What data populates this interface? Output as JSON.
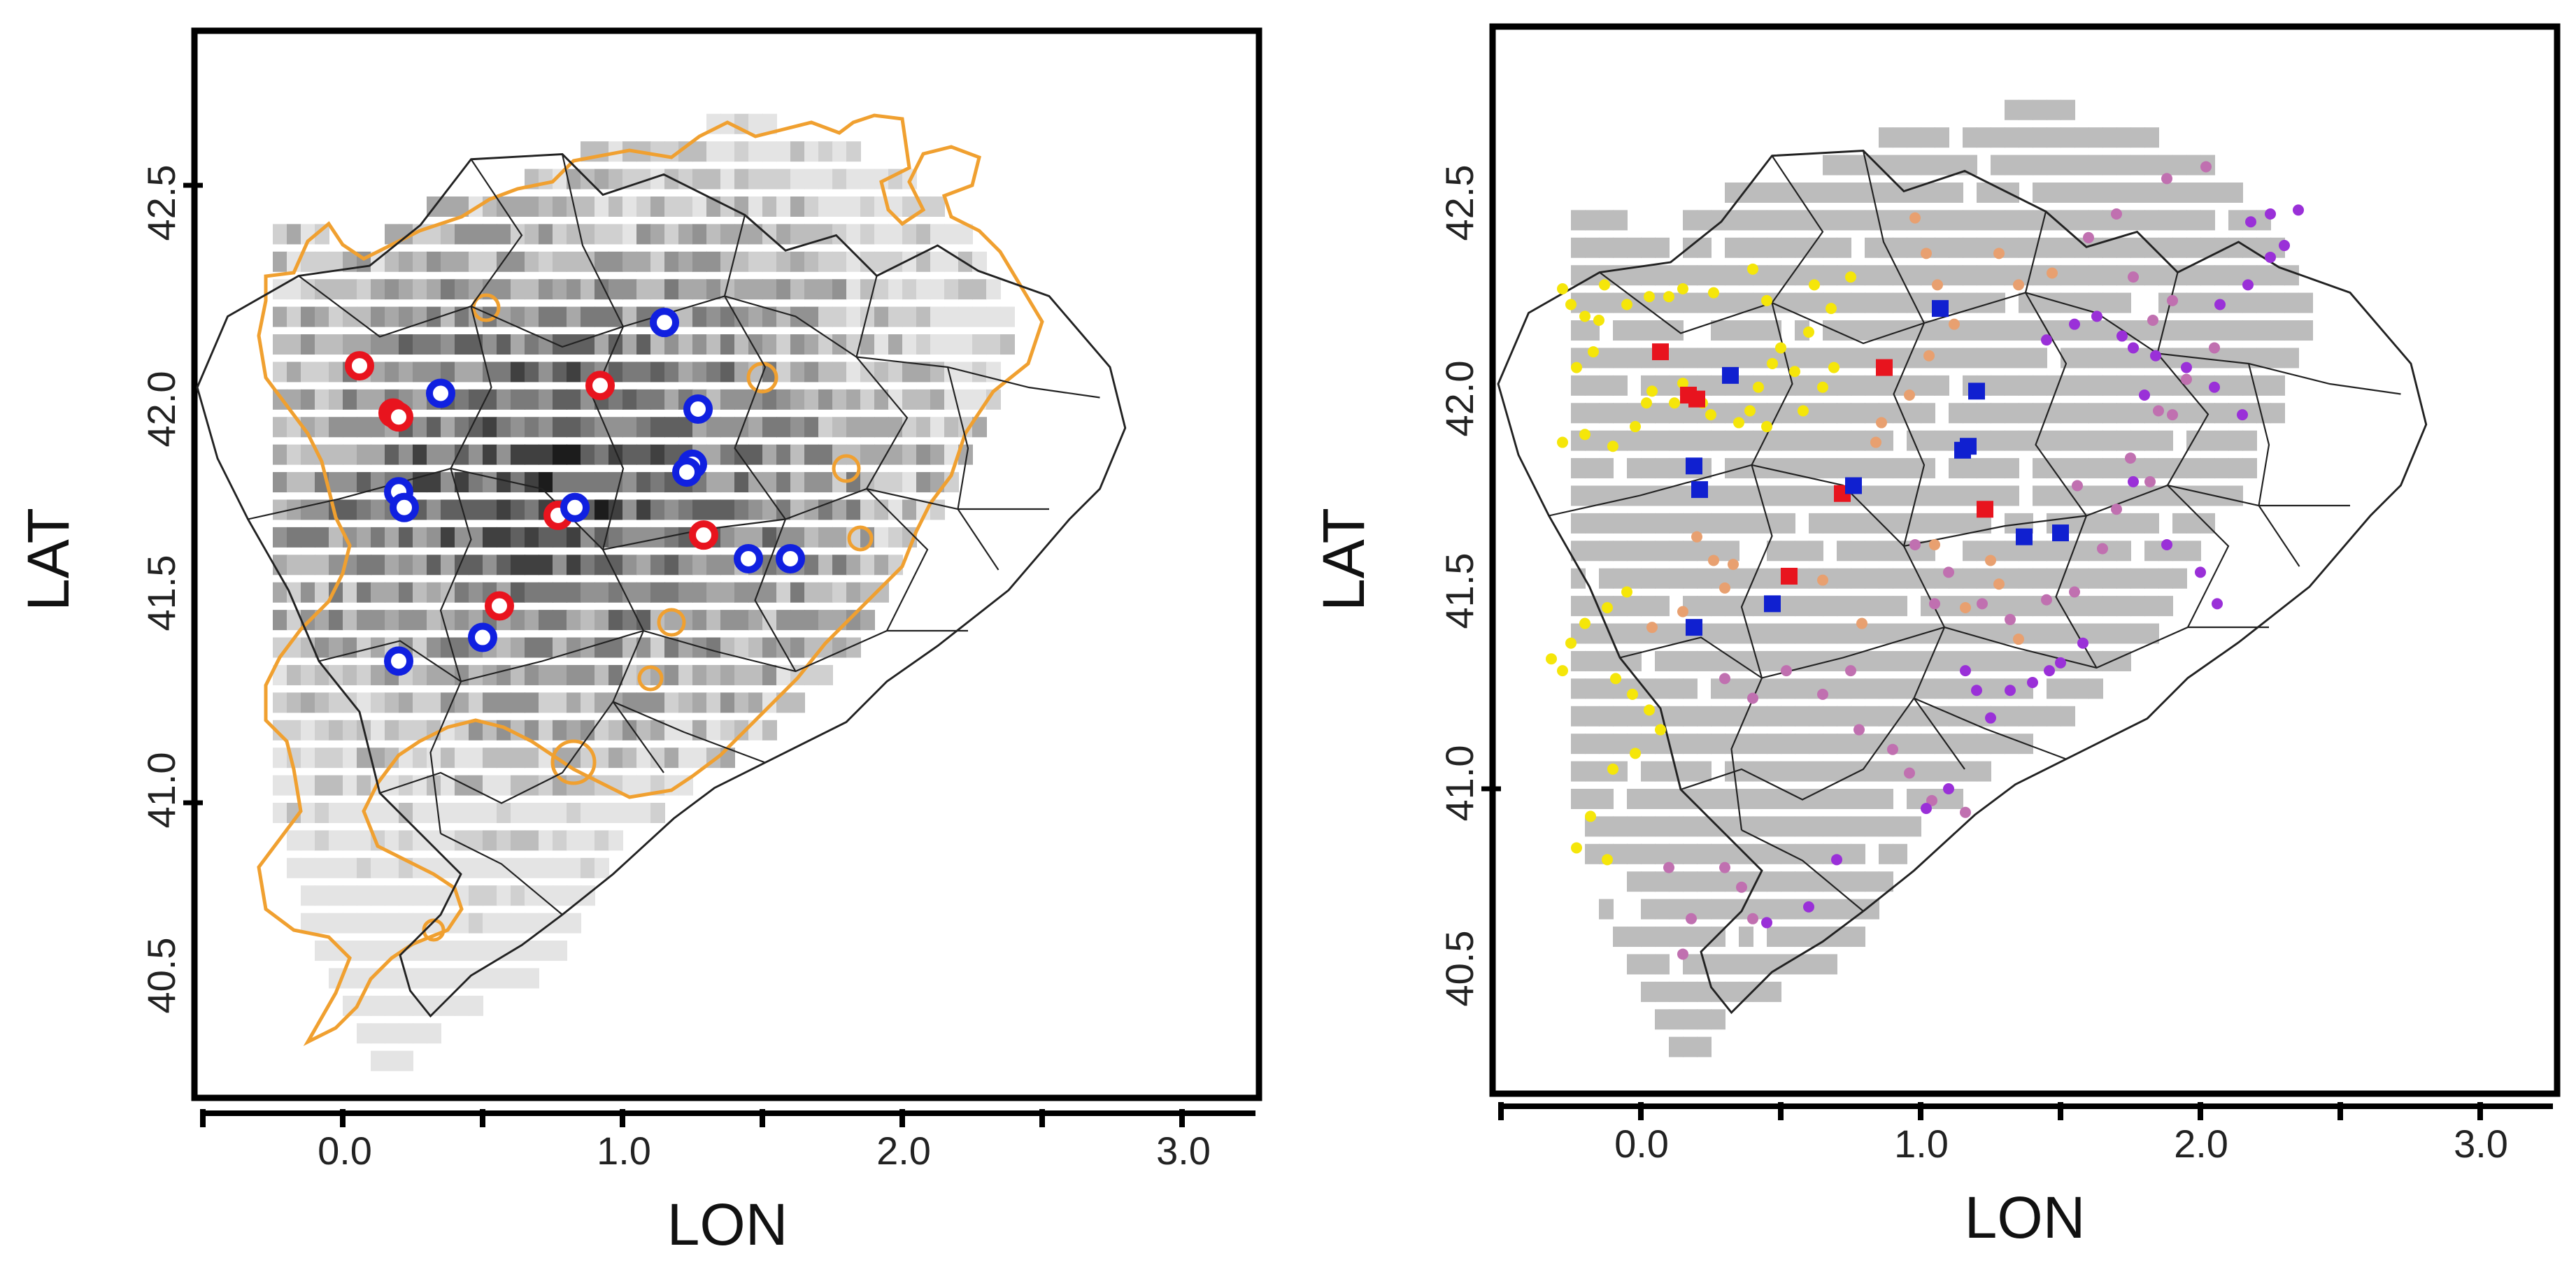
{
  "figure": {
    "panels": [
      {
        "id": "left",
        "x_label": "LON",
        "y_label": "LAT",
        "x_ticks": [
          "0.0",
          "1.0",
          "2.0",
          "3.0"
        ],
        "y_ticks": [
          "40.5",
          "41.0",
          "41.5",
          "42.0",
          "42.5"
        ],
        "x_range": [
          -0.5,
          3.2
        ],
        "y_range": [
          40.2,
          42.95
        ],
        "raster": "grayscale intensity grid",
        "contour_color": "#f0a030"
      },
      {
        "id": "right",
        "x_label": "LON",
        "y_label": "LAT",
        "x_ticks": [
          "0.0",
          "1.0",
          "2.0",
          "3.0"
        ],
        "y_ticks": [
          "40.5",
          "41.0",
          "41.5",
          "42.0",
          "42.5"
        ],
        "x_range": [
          -0.5,
          3.2
        ],
        "y_range": [
          40.2,
          42.95
        ],
        "raster": "uniform gray mask",
        "dot_palette": [
          "#f5e60a",
          "#e8a070",
          "#c070b0",
          "#9a30d8"
        ]
      }
    ]
  },
  "chart_data": [
    {
      "type": "scatter",
      "panel": "left",
      "xlabel": "LON",
      "ylabel": "LAT",
      "xlim": [
        -0.5,
        3.2
      ],
      "ylim": [
        40.2,
        42.95
      ],
      "series": [
        {
          "name": "red circles",
          "color": "#e8141e",
          "points": [
            [
              0.06,
              42.11
            ],
            [
              0.18,
              41.99
            ],
            [
              0.2,
              41.98
            ],
            [
              0.92,
              42.06
            ],
            [
              0.77,
              41.73
            ],
            [
              1.29,
              41.68
            ],
            [
              0.56,
              41.5
            ]
          ]
        },
        {
          "name": "blue circles",
          "color": "#1020e0",
          "points": [
            [
              1.15,
              42.22
            ],
            [
              0.35,
              42.04
            ],
            [
              1.27,
              42.0
            ],
            [
              1.25,
              41.86
            ],
            [
              1.23,
              41.84
            ],
            [
              0.2,
              41.79
            ],
            [
              0.22,
              41.75
            ],
            [
              0.83,
              41.75
            ],
            [
              1.45,
              41.62
            ],
            [
              1.6,
              41.62
            ],
            [
              0.5,
              41.42
            ],
            [
              0.2,
              41.36
            ]
          ]
        }
      ]
    },
    {
      "type": "scatter",
      "panel": "right",
      "xlabel": "LON",
      "ylabel": "LAT",
      "xlim": [
        -0.5,
        3.2
      ],
      "ylim": [
        40.2,
        42.95
      ],
      "series": [
        {
          "name": "red squares",
          "color": "#e8141e",
          "points": [
            [
              0.07,
              42.11
            ],
            [
              0.17,
              42.0
            ],
            [
              0.2,
              41.99
            ],
            [
              0.87,
              42.07
            ],
            [
              0.72,
              41.75
            ],
            [
              1.23,
              41.71
            ],
            [
              0.53,
              41.54
            ]
          ]
        },
        {
          "name": "blue squares",
          "color": "#1020d0",
          "points": [
            [
              1.07,
              42.22
            ],
            [
              0.32,
              42.05
            ],
            [
              1.2,
              42.01
            ],
            [
              1.17,
              41.87
            ],
            [
              1.15,
              41.86
            ],
            [
              0.19,
              41.82
            ],
            [
              0.21,
              41.76
            ],
            [
              0.76,
              41.77
            ],
            [
              1.37,
              41.64
            ],
            [
              1.5,
              41.65
            ],
            [
              0.47,
              41.47
            ],
            [
              0.19,
              41.41
            ]
          ]
        },
        {
          "name": "yellow dots",
          "color": "#f5e60a",
          "points": [
            [
              -0.28,
              42.27
            ],
            [
              -0.25,
              42.23
            ],
            [
              -0.2,
              42.2
            ],
            [
              -0.15,
              42.19
            ],
            [
              -0.13,
              42.28
            ],
            [
              -0.05,
              42.23
            ],
            [
              -0.17,
              42.11
            ],
            [
              -0.23,
              42.07
            ],
            [
              0.03,
              42.25
            ],
            [
              0.1,
              42.25
            ],
            [
              0.15,
              42.27
            ],
            [
              0.26,
              42.26
            ],
            [
              0.4,
              42.32
            ],
            [
              0.45,
              42.24
            ],
            [
              0.62,
              42.28
            ],
            [
              0.75,
              42.3
            ],
            [
              0.68,
              42.22
            ],
            [
              0.6,
              42.16
            ],
            [
              0.5,
              42.12
            ],
            [
              0.47,
              42.08
            ],
            [
              0.42,
              42.02
            ],
            [
              0.39,
              41.96
            ],
            [
              0.45,
              41.92
            ],
            [
              0.58,
              41.96
            ],
            [
              0.65,
              42.02
            ],
            [
              0.69,
              42.07
            ],
            [
              0.55,
              42.06
            ],
            [
              0.35,
              41.93
            ],
            [
              0.25,
              41.95
            ],
            [
              0.12,
              41.98
            ],
            [
              0.02,
              41.98
            ],
            [
              -0.02,
              41.92
            ],
            [
              -0.1,
              41.87
            ],
            [
              -0.2,
              41.9
            ],
            [
              -0.28,
              41.88
            ],
            [
              0.04,
              42.01
            ],
            [
              0.15,
              42.03
            ],
            [
              0.22,
              41.98
            ],
            [
              -0.32,
              41.33
            ],
            [
              -0.28,
              41.3
            ],
            [
              -0.25,
              41.37
            ],
            [
              -0.2,
              41.42
            ],
            [
              -0.12,
              41.46
            ],
            [
              -0.05,
              41.5
            ],
            [
              -0.09,
              41.28
            ],
            [
              -0.03,
              41.24
            ],
            [
              0.03,
              41.2
            ],
            [
              0.07,
              41.15
            ],
            [
              -0.02,
              41.09
            ],
            [
              -0.1,
              41.05
            ],
            [
              -0.18,
              40.93
            ],
            [
              -0.23,
              40.85
            ],
            [
              -0.12,
              40.82
            ]
          ]
        },
        {
          "name": "orange-tan dots",
          "color": "#e8a070",
          "points": [
            [
              0.98,
              42.45
            ],
            [
              1.02,
              42.36
            ],
            [
              1.06,
              42.28
            ],
            [
              1.12,
              42.18
            ],
            [
              1.03,
              42.1
            ],
            [
              0.96,
              42.0
            ],
            [
              0.86,
              41.93
            ],
            [
              0.84,
              41.88
            ],
            [
              0.2,
              41.64
            ],
            [
              0.26,
              41.58
            ],
            [
              0.33,
              41.57
            ],
            [
              0.3,
              41.51
            ],
            [
              0.15,
              41.45
            ],
            [
              0.04,
              41.41
            ],
            [
              1.05,
              41.62
            ],
            [
              1.25,
              41.58
            ],
            [
              1.28,
              41.52
            ],
            [
              1.16,
              41.46
            ],
            [
              1.35,
              41.38
            ],
            [
              0.79,
              41.42
            ],
            [
              0.65,
              41.53
            ],
            [
              1.28,
              42.36
            ],
            [
              1.35,
              42.28
            ],
            [
              1.47,
              42.31
            ]
          ]
        },
        {
          "name": "mauve dots",
          "color": "#c070b0",
          "points": [
            [
              0.3,
              41.28
            ],
            [
              0.4,
              41.23
            ],
            [
              0.52,
              41.3
            ],
            [
              0.65,
              41.24
            ],
            [
              0.75,
              41.3
            ],
            [
              0.78,
              41.15
            ],
            [
              0.9,
              41.1
            ],
            [
              0.96,
              41.04
            ],
            [
              1.04,
              40.97
            ],
            [
              1.16,
              40.94
            ],
            [
              0.1,
              40.8
            ],
            [
              0.3,
              40.8
            ],
            [
              0.36,
              40.75
            ],
            [
              0.4,
              40.67
            ],
            [
              0.18,
              40.67
            ],
            [
              0.15,
              40.58
            ],
            [
              0.98,
              41.62
            ],
            [
              1.1,
              41.55
            ],
            [
              1.05,
              41.47
            ],
            [
              1.22,
              41.47
            ],
            [
              1.32,
              41.43
            ],
            [
              1.45,
              41.48
            ],
            [
              1.55,
              41.5
            ],
            [
              1.65,
              41.61
            ],
            [
              1.7,
              41.71
            ],
            [
              1.82,
              41.78
            ],
            [
              1.56,
              41.77
            ],
            [
              1.75,
              41.84
            ],
            [
              1.85,
              41.96
            ],
            [
              1.95,
              42.04
            ],
            [
              2.05,
              42.12
            ],
            [
              1.9,
              42.24
            ],
            [
              1.76,
              42.3
            ],
            [
              1.6,
              42.4
            ],
            [
              1.7,
              42.46
            ],
            [
              1.88,
              42.55
            ],
            [
              2.02,
              42.58
            ],
            [
              1.83,
              42.19
            ],
            [
              1.9,
              41.95
            ]
          ]
        },
        {
          "name": "purple dots",
          "color": "#9a30d8",
          "points": [
            [
              0.45,
              40.66
            ],
            [
              0.6,
              40.7
            ],
            [
              0.7,
              40.82
            ],
            [
              1.02,
              40.95
            ],
            [
              1.1,
              41.0
            ],
            [
              1.25,
              41.18
            ],
            [
              1.32,
              41.25
            ],
            [
              1.2,
              41.25
            ],
            [
              1.16,
              41.3
            ],
            [
              1.4,
              41.27
            ],
            [
              1.46,
              41.3
            ],
            [
              1.5,
              41.32
            ],
            [
              1.58,
              41.37
            ],
            [
              1.45,
              42.14
            ],
            [
              1.55,
              42.18
            ],
            [
              1.63,
              42.2
            ],
            [
              1.72,
              42.15
            ],
            [
              1.76,
              42.12
            ],
            [
              1.84,
              42.1
            ],
            [
              1.8,
              42.0
            ],
            [
              1.95,
              42.07
            ],
            [
              2.07,
              42.23
            ],
            [
              2.17,
              42.28
            ],
            [
              2.25,
              42.35
            ],
            [
              2.3,
              42.38
            ],
            [
              2.25,
              42.46
            ],
            [
              2.18,
              42.44
            ],
            [
              2.35,
              42.47
            ],
            [
              2.05,
              42.02
            ],
            [
              2.15,
              41.95
            ],
            [
              1.76,
              41.78
            ],
            [
              1.88,
              41.62
            ],
            [
              2.0,
              41.55
            ],
            [
              2.06,
              41.47
            ]
          ]
        }
      ]
    }
  ]
}
